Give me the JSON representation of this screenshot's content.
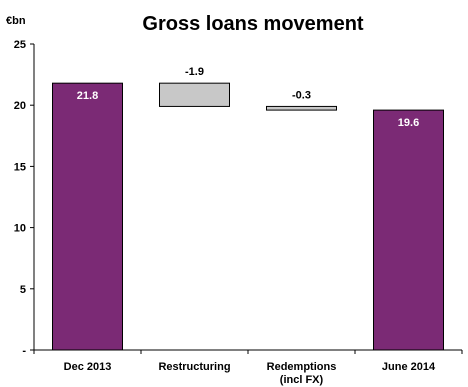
{
  "chart_data": {
    "type": "bar",
    "subtype": "waterfall",
    "title": "Gross loans movement",
    "ylabel": "€bn",
    "ylim": [
      0,
      25
    ],
    "yticks": [
      "-",
      "5",
      "10",
      "15",
      "20",
      "25"
    ],
    "grid": false,
    "legend": "none",
    "categories": [
      "Dec 2013",
      "Restructuring",
      "Redemptions (incl FX)",
      "June 2014"
    ],
    "category_lines": [
      [
        "Dec 2013"
      ],
      [
        "Restructuring"
      ],
      [
        "Redemptions",
        "(incl FX)"
      ],
      [
        "June 2014"
      ]
    ],
    "bars": [
      {
        "category": "Dec 2013",
        "kind": "total",
        "start": 0,
        "end": 21.8,
        "label": "21.8"
      },
      {
        "category": "Restructuring",
        "kind": "delta",
        "start": 21.8,
        "end": 19.9,
        "label": "-1.9"
      },
      {
        "category": "Redemptions (incl FX)",
        "kind": "delta",
        "start": 19.9,
        "end": 19.6,
        "label": "-0.3"
      },
      {
        "category": "June 2014",
        "kind": "total",
        "start": 0,
        "end": 19.6,
        "label": "19.6"
      }
    ],
    "colors": {
      "total": "#7b2a75",
      "delta": "#c8c8c8",
      "outline": "#000000"
    }
  }
}
